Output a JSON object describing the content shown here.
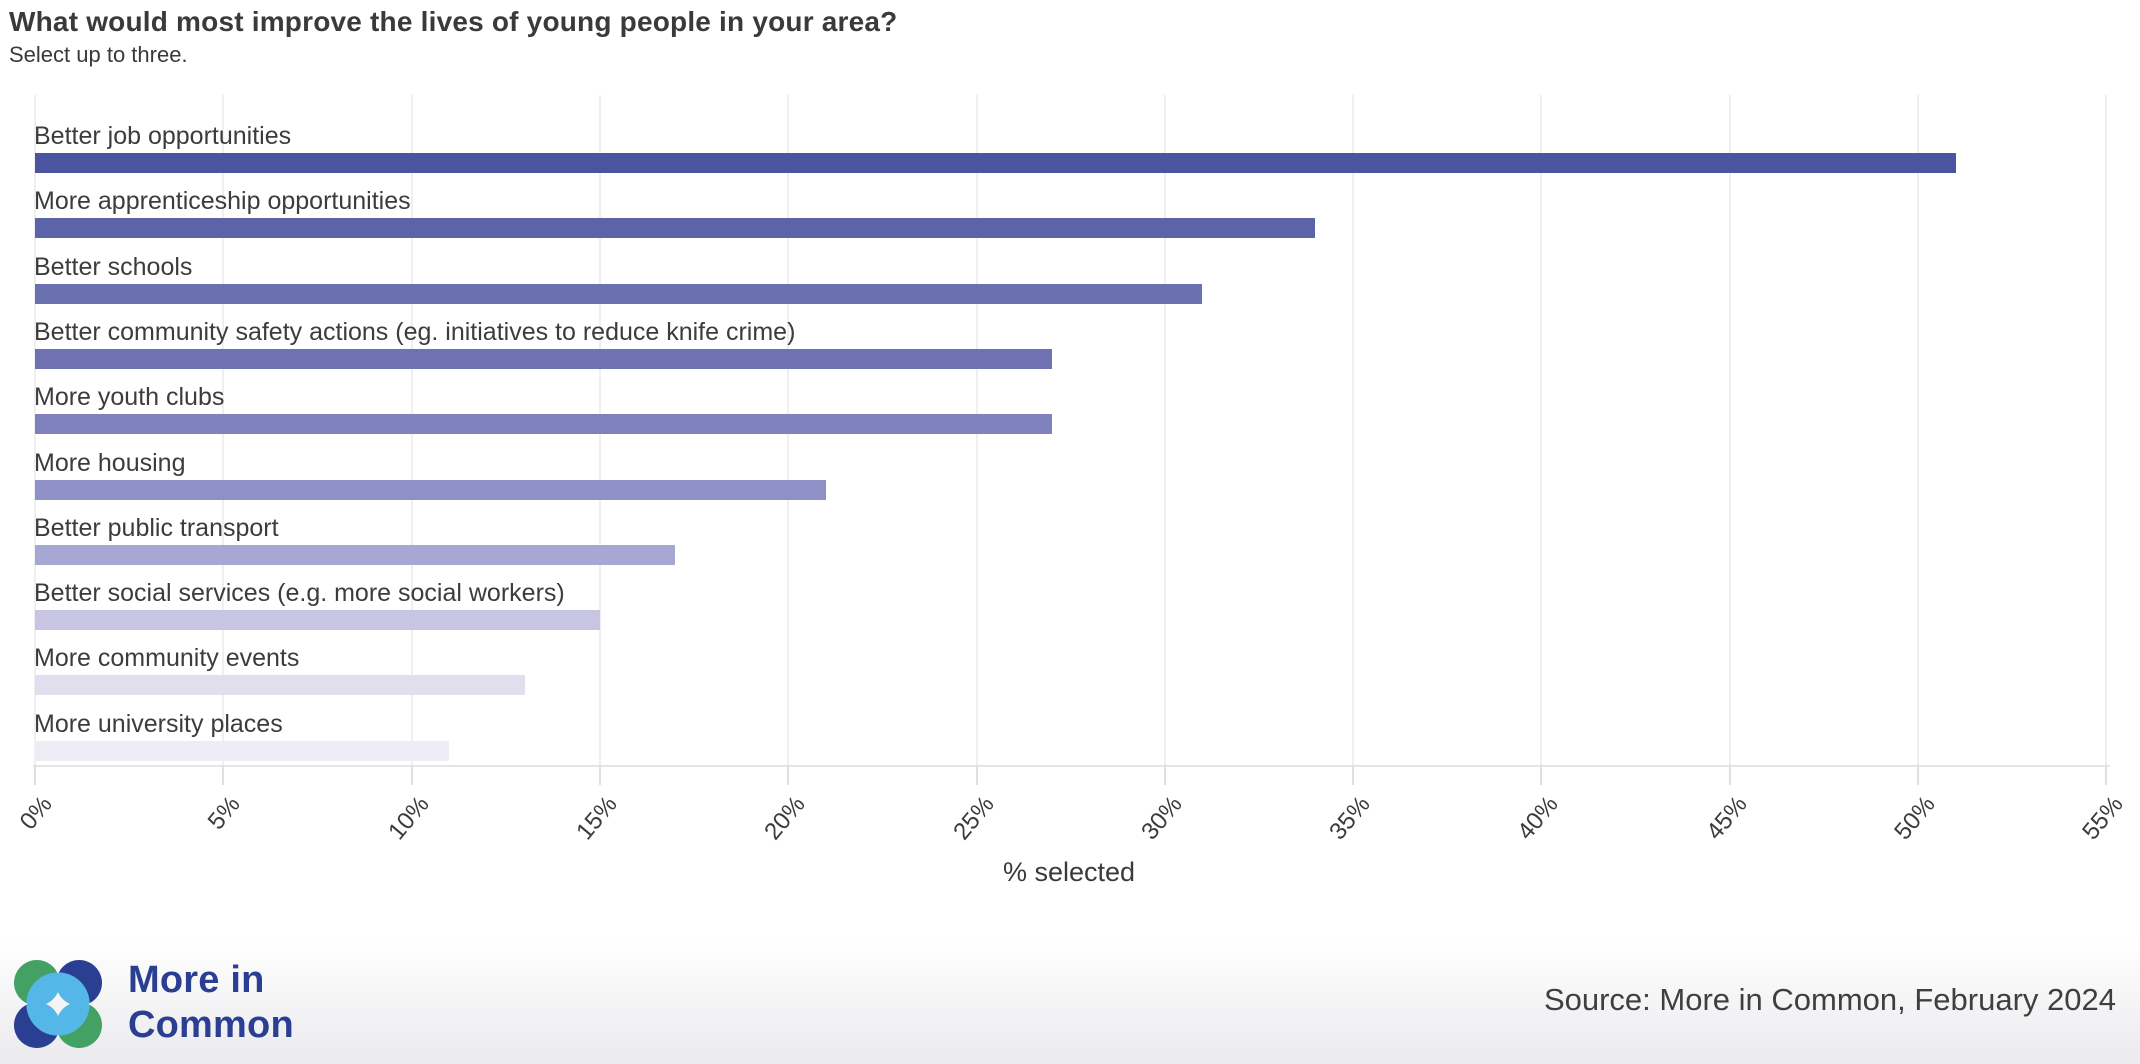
{
  "page": {
    "title": "What would most improve the lives of young people in your area?",
    "subtitle": "Select up to three."
  },
  "chart_data": {
    "type": "bar",
    "orientation": "horizontal",
    "title": "What would most improve the lives of young people in your area?",
    "subtitle": "Select up to three.",
    "categories": [
      "Better job opportunities",
      "More apprenticeship opportunities",
      "Better schools",
      "Better community safety actions (eg. initiatives to reduce knife crime)",
      "More youth clubs",
      "More housing",
      "Better public transport",
      "Better social services (e.g. more social workers)",
      "More community events",
      "More university places"
    ],
    "values": [
      51,
      34,
      31,
      27,
      27,
      21,
      17,
      15,
      13,
      11
    ],
    "bar_colors": [
      "#4b549f",
      "#5c63a9",
      "#6b70b1",
      "#6e72b3",
      "#7e81bd",
      "#8e90c6",
      "#a7a7d3",
      "#c7c5e2",
      "#e0dfee",
      "#eeedf5"
    ],
    "xlabel": "% selected",
    "xlim": [
      0,
      55
    ],
    "xticks": [
      "0%",
      "5%",
      "10%",
      "15%",
      "20%",
      "25%",
      "30%",
      "35%",
      "40%",
      "45%",
      "50%",
      "55%"
    ],
    "tick_rotation_deg": -50,
    "grid": true,
    "legend": "none"
  },
  "footer": {
    "logo_line1": "More in",
    "logo_line2": "Common",
    "source": "Source: More in Common, February 2024",
    "brand_blue": "#2b3f92",
    "brand_green": "#44a164",
    "brand_lightblue": "#54b7e8"
  }
}
